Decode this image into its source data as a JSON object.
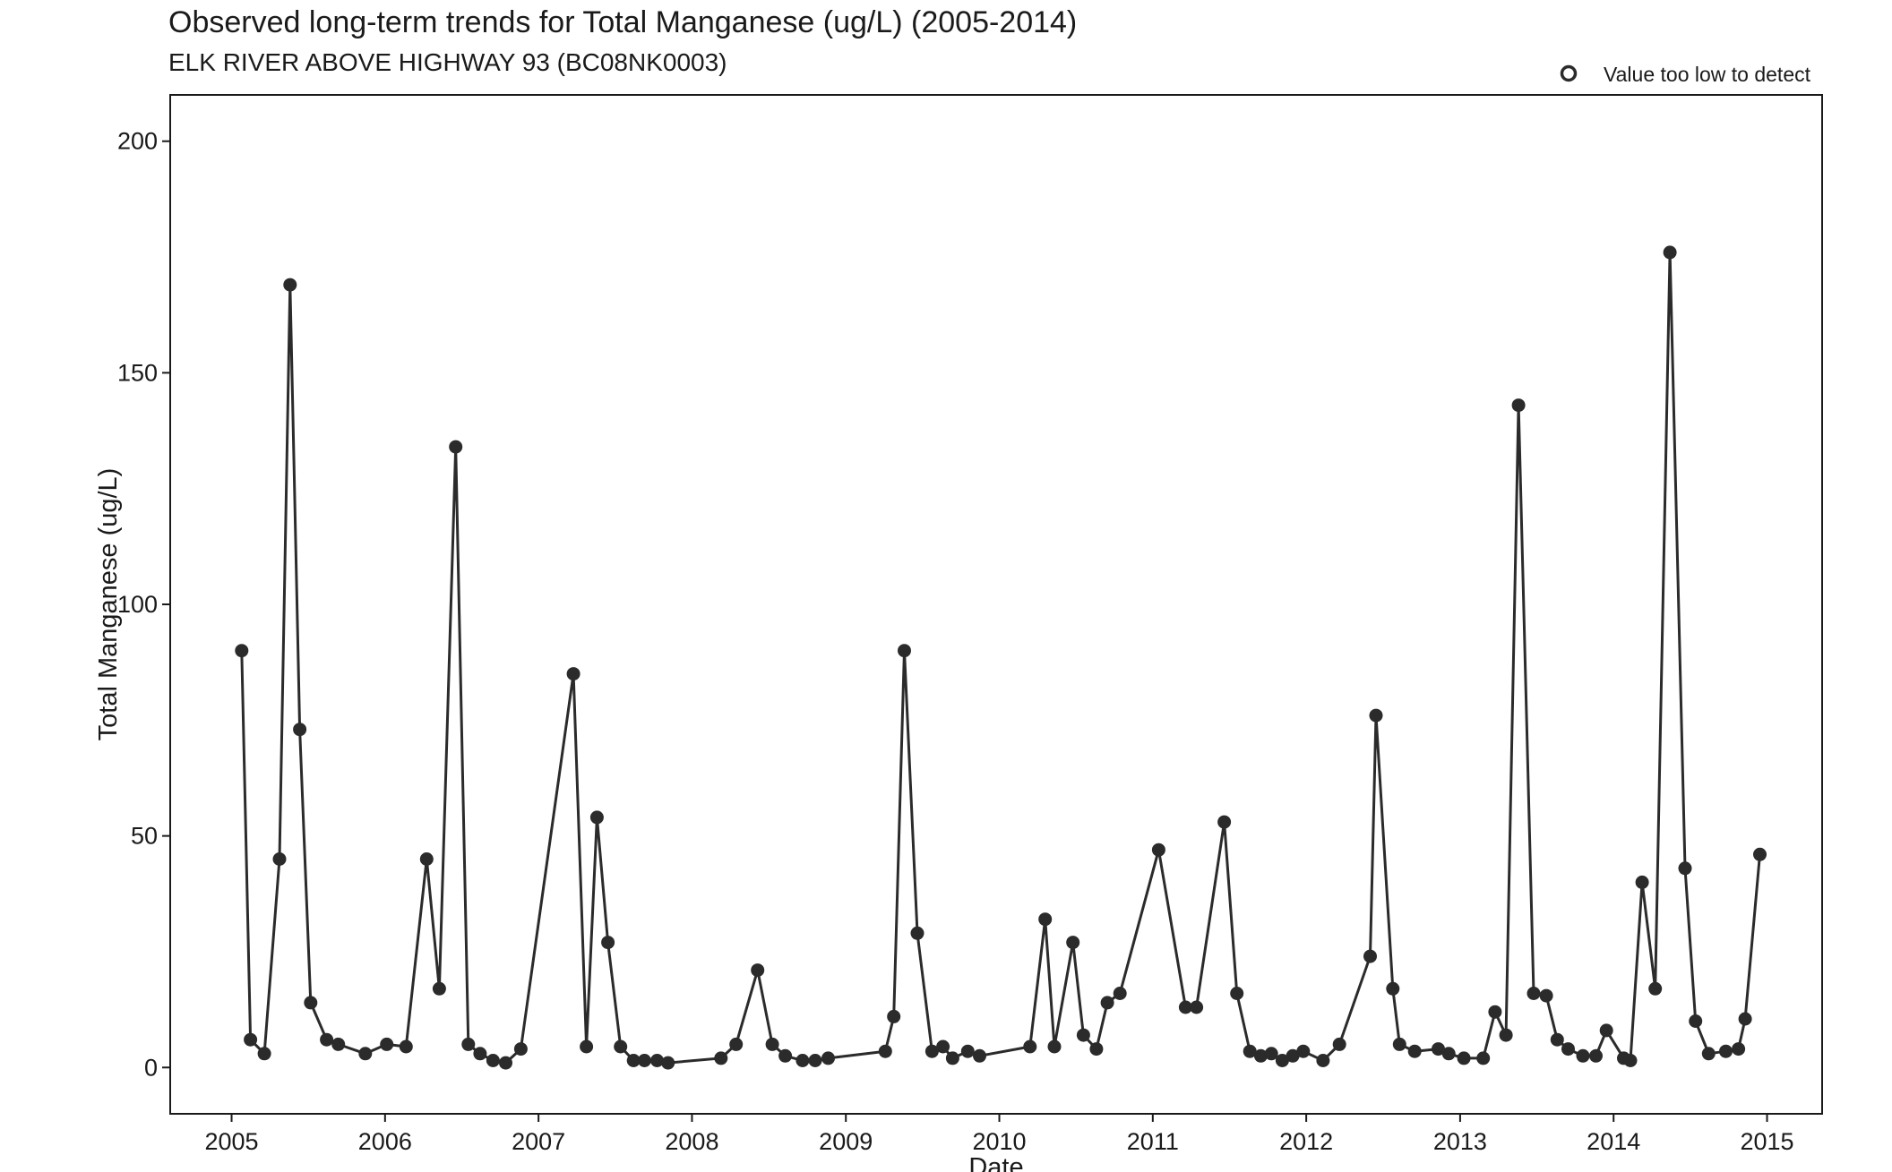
{
  "title": "Observed long-term trends for Total Manganese (ug/L) (2005-2014)",
  "subtitle": "ELK RIVER ABOVE HIGHWAY 93 (BC08NK0003)",
  "legend": {
    "label": "Value too low to detect",
    "position": "top-right"
  },
  "colors": {
    "series": "#2b2b2b",
    "frame": "#1a1a1a",
    "background": "#ffffff"
  },
  "chart_data": {
    "type": "line",
    "title": "Observed long-term trends for Total Manganese (ug/L) (2005-2014)",
    "subtitle": "ELK RIVER ABOVE HIGHWAY 93 (BC08NK0003)",
    "xlabel": "Date",
    "ylabel": "Total Manganese (ug/L)",
    "xlim": [
      "2004-08-08",
      "2015-05-12"
    ],
    "ylim": [
      -10,
      210
    ],
    "x_ticks": [
      "2005",
      "2006",
      "2007",
      "2008",
      "2009",
      "2010",
      "2011",
      "2012",
      "2013",
      "2014",
      "2015"
    ],
    "y_ticks": [
      0,
      50,
      100,
      150,
      200
    ],
    "grid": false,
    "legend": {
      "entries": [
        "Value too low to detect"
      ],
      "marker": "open circle",
      "position": "top-right"
    },
    "series": [
      {
        "points": [
          [
            "2005-01-25",
            90
          ],
          [
            "2005-02-15",
            6
          ],
          [
            "2005-03-20",
            3
          ],
          [
            "2005-04-25",
            45
          ],
          [
            "2005-05-20",
            169
          ],
          [
            "2005-06-12",
            73
          ],
          [
            "2005-07-08",
            14
          ],
          [
            "2005-08-15",
            6
          ],
          [
            "2005-09-12",
            5
          ],
          [
            "2005-11-15",
            3
          ],
          [
            "2006-01-05",
            5
          ],
          [
            "2006-02-20",
            4.5
          ],
          [
            "2006-04-10",
            45
          ],
          [
            "2006-05-10",
            17
          ],
          [
            "2006-06-18",
            134
          ],
          [
            "2006-07-18",
            5
          ],
          [
            "2006-08-15",
            3
          ],
          [
            "2006-09-15",
            1.5
          ],
          [
            "2006-10-15",
            1
          ],
          [
            "2006-11-20",
            4
          ],
          [
            "2007-03-25",
            85
          ],
          [
            "2007-04-25",
            4.5
          ],
          [
            "2007-05-20",
            54
          ],
          [
            "2007-06-15",
            27
          ],
          [
            "2007-07-15",
            4.5
          ],
          [
            "2007-08-15",
            1.5
          ],
          [
            "2007-09-10",
            1.5
          ],
          [
            "2007-10-10",
            1.5
          ],
          [
            "2007-11-05",
            1
          ],
          [
            "2008-03-10",
            2
          ],
          [
            "2008-04-15",
            5
          ],
          [
            "2008-06-05",
            21
          ],
          [
            "2008-07-10",
            5
          ],
          [
            "2008-08-10",
            2.5
          ],
          [
            "2008-09-20",
            1.5
          ],
          [
            "2008-10-20",
            1.5
          ],
          [
            "2008-11-20",
            2
          ],
          [
            "2009-04-05",
            3.5
          ],
          [
            "2009-04-25",
            11
          ],
          [
            "2009-05-20",
            90
          ],
          [
            "2009-06-20",
            29
          ],
          [
            "2009-07-25",
            3.5
          ],
          [
            "2009-08-20",
            4.5
          ],
          [
            "2009-09-12",
            2
          ],
          [
            "2009-10-18",
            3.5
          ],
          [
            "2009-11-15",
            2.5
          ],
          [
            "2010-03-15",
            4.5
          ],
          [
            "2010-04-20",
            32
          ],
          [
            "2010-05-12",
            4.5
          ],
          [
            "2010-06-25",
            27
          ],
          [
            "2010-07-20",
            7
          ],
          [
            "2010-08-20",
            4
          ],
          [
            "2010-09-15",
            14
          ],
          [
            "2010-10-15",
            16
          ],
          [
            "2011-01-15",
            47
          ],
          [
            "2011-03-20",
            13
          ],
          [
            "2011-04-15",
            13
          ],
          [
            "2011-06-20",
            53
          ],
          [
            "2011-07-20",
            16
          ],
          [
            "2011-08-20",
            3.5
          ],
          [
            "2011-09-15",
            2.5
          ],
          [
            "2011-10-10",
            3
          ],
          [
            "2011-11-05",
            1.5
          ],
          [
            "2011-11-30",
            2.5
          ],
          [
            "2011-12-25",
            3.5
          ],
          [
            "2012-02-10",
            1.5
          ],
          [
            "2012-03-20",
            5
          ],
          [
            "2012-06-01",
            24
          ],
          [
            "2012-06-15",
            76
          ],
          [
            "2012-07-25",
            17
          ],
          [
            "2012-08-10",
            5
          ],
          [
            "2012-09-15",
            3.5
          ],
          [
            "2012-11-10",
            4
          ],
          [
            "2012-12-05",
            3
          ],
          [
            "2013-01-10",
            2
          ],
          [
            "2013-02-25",
            2
          ],
          [
            "2013-03-25",
            12
          ],
          [
            "2013-04-20",
            7
          ],
          [
            "2013-05-20",
            143
          ],
          [
            "2013-06-25",
            16
          ],
          [
            "2013-07-25",
            15.5
          ],
          [
            "2013-08-20",
            6
          ],
          [
            "2013-09-15",
            4
          ],
          [
            "2013-10-20",
            2.5
          ],
          [
            "2013-11-20",
            2.5
          ],
          [
            "2013-12-15",
            8
          ],
          [
            "2014-01-25",
            2
          ],
          [
            "2014-02-10",
            1.5
          ],
          [
            "2014-03-10",
            40
          ],
          [
            "2014-04-10",
            17
          ],
          [
            "2014-05-15",
            176
          ],
          [
            "2014-06-20",
            43
          ],
          [
            "2014-07-15",
            10
          ],
          [
            "2014-08-15",
            3
          ],
          [
            "2014-09-25",
            3.5
          ],
          [
            "2014-10-25",
            4
          ],
          [
            "2014-11-10",
            10.5
          ],
          [
            "2014-12-15",
            46
          ]
        ]
      }
    ]
  }
}
